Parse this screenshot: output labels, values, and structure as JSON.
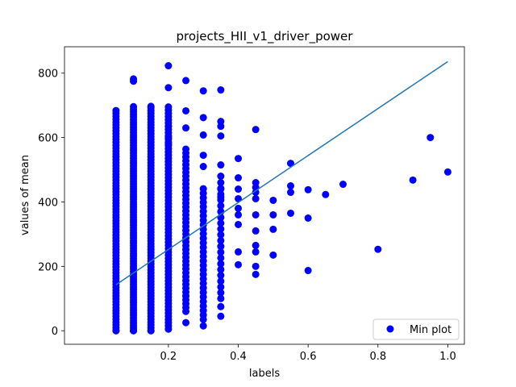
{
  "chart_data": {
    "type": "scatter",
    "title": "projects_HII_v1_driver_power",
    "xlabel": "labels",
    "ylabel": "values of mean",
    "xlim": [
      -0.0975,
      1.0475
    ],
    "ylim": [
      -42,
      882
    ],
    "xticks": [
      0.2,
      0.4,
      0.6,
      0.8,
      1.0
    ],
    "xtick_labels": [
      "0.2",
      "0.4",
      "0.6",
      "0.8",
      "1.0"
    ],
    "yticks": [
      0,
      200,
      400,
      600,
      800
    ],
    "ytick_labels": [
      "0",
      "200",
      "400",
      "600",
      "800"
    ],
    "grid": false,
    "legend_position": "lower-right",
    "series": [
      {
        "name": "Min plot",
        "kind": "scatter",
        "color": "#0000ff",
        "columns": [
          {
            "x": 0.05,
            "y_min": 0,
            "y_max": 690,
            "step": 9
          },
          {
            "x": 0.1,
            "y_min": 0,
            "y_max": 700,
            "step": 8
          },
          {
            "x": 0.15,
            "y_min": 0,
            "y_max": 695,
            "step": 9
          },
          {
            "x": 0.2,
            "y_min": 5,
            "y_max": 695,
            "step": 10
          },
          {
            "x": 0.25,
            "y_min": 60,
            "y_max": 575,
            "step": 12
          },
          {
            "x": 0.3,
            "y_min": 35,
            "y_max": 445,
            "step": 14
          },
          {
            "x": 0.35,
            "y_min": 100,
            "y_max": 475,
            "step": 18
          }
        ],
        "points": [
          [
            0.05,
            0
          ],
          [
            0.1,
            0
          ],
          [
            0.15,
            0
          ],
          [
            0.1,
            775
          ],
          [
            0.1,
            782
          ],
          [
            0.15,
            697
          ],
          [
            0.2,
            823
          ],
          [
            0.2,
            755
          ],
          [
            0.2,
            635
          ],
          [
            0.2,
            600
          ],
          [
            0.2,
            580
          ],
          [
            0.25,
            777
          ],
          [
            0.25,
            683
          ],
          [
            0.25,
            630
          ],
          [
            0.25,
            25
          ],
          [
            0.3,
            745
          ],
          [
            0.3,
            662
          ],
          [
            0.3,
            608
          ],
          [
            0.3,
            545
          ],
          [
            0.3,
            510
          ],
          [
            0.3,
            15
          ],
          [
            0.35,
            748
          ],
          [
            0.35,
            650
          ],
          [
            0.35,
            635
          ],
          [
            0.35,
            605
          ],
          [
            0.35,
            515
          ],
          [
            0.35,
            480
          ],
          [
            0.35,
            440
          ],
          [
            0.35,
            415
          ],
          [
            0.35,
            45
          ],
          [
            0.35,
            75
          ],
          [
            0.4,
            535
          ],
          [
            0.4,
            475
          ],
          [
            0.4,
            440
          ],
          [
            0.4,
            410
          ],
          [
            0.4,
            380
          ],
          [
            0.4,
            360
          ],
          [
            0.4,
            330
          ],
          [
            0.4,
            245
          ],
          [
            0.4,
            205
          ],
          [
            0.45,
            625
          ],
          [
            0.45,
            460
          ],
          [
            0.45,
            445
          ],
          [
            0.45,
            430
          ],
          [
            0.45,
            410
          ],
          [
            0.45,
            360
          ],
          [
            0.45,
            310
          ],
          [
            0.45,
            265
          ],
          [
            0.45,
            245
          ],
          [
            0.45,
            200
          ],
          [
            0.45,
            175
          ],
          [
            0.5,
            405
          ],
          [
            0.5,
            360
          ],
          [
            0.5,
            315
          ],
          [
            0.5,
            235
          ],
          [
            0.55,
            520
          ],
          [
            0.55,
            450
          ],
          [
            0.55,
            430
          ],
          [
            0.55,
            365
          ],
          [
            0.6,
            438
          ],
          [
            0.6,
            350
          ],
          [
            0.6,
            187
          ],
          [
            0.65,
            423
          ],
          [
            0.7,
            455
          ],
          [
            0.8,
            253
          ],
          [
            0.9,
            468
          ],
          [
            0.95,
            600
          ],
          [
            1.0,
            493
          ]
        ]
      },
      {
        "name": "",
        "kind": "line",
        "color": "#1f77b4",
        "points": [
          [
            0.05,
            143
          ],
          [
            1.0,
            836
          ]
        ]
      }
    ]
  }
}
